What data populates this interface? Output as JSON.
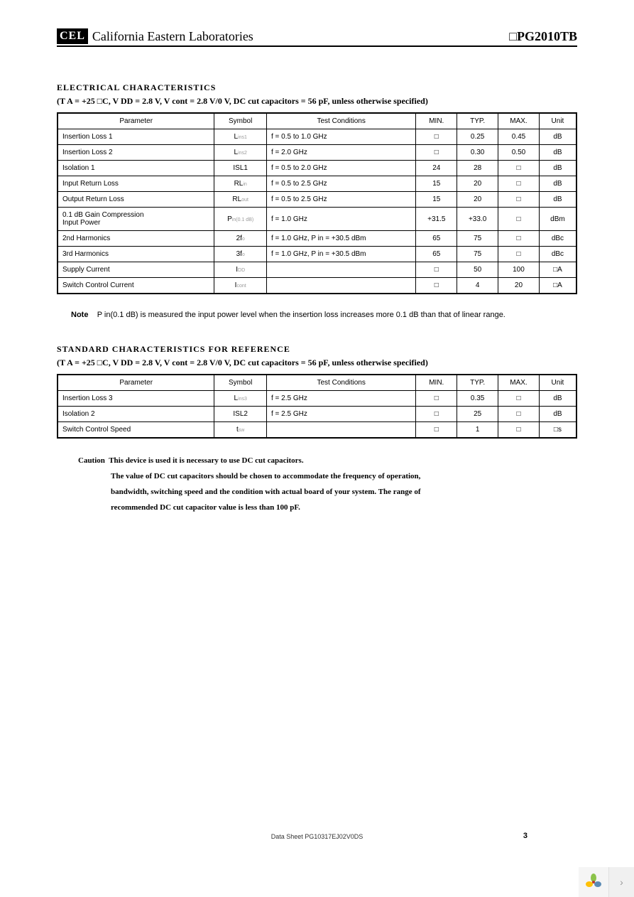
{
  "header": {
    "logo_text": "CEL",
    "company": "California Eastern Laboratories",
    "part_number": "□PG2010TB"
  },
  "section1": {
    "title": "ELECTRICAL  CHARACTERISTICS",
    "conditions": "(T A = +25  □C, V DD  = 2.8 V, V  cont   = 2.8 V/0 V, DC cut capacitors = 56 pF, unless otherwise specified)",
    "columns": [
      "Parameter",
      "Symbol",
      "Test Conditions",
      "MIN.",
      "TYP.",
      "MAX.",
      "Unit"
    ],
    "rows": [
      {
        "param": "Insertion Loss 1",
        "sym": "L",
        "sym_sub": "ins1",
        "cond": "f = 0.5 to 1.0 GHz",
        "min": "□",
        "typ": "0.25",
        "max": "0.45",
        "unit": "dB"
      },
      {
        "param": "Insertion Loss 2",
        "sym": "L",
        "sym_sub": "ins2",
        "cond": "f = 2.0 GHz",
        "min": "□",
        "typ": "0.30",
        "max": "0.50",
        "unit": "dB"
      },
      {
        "param": "Isolation 1",
        "sym": "ISL1",
        "sym_sub": "",
        "cond": "f = 0.5 to 2.0 GHz",
        "min": "24",
        "typ": "28",
        "max": "□",
        "unit": "dB"
      },
      {
        "param": "Input Return Loss",
        "sym": "RL",
        "sym_sub": "in",
        "cond": "f = 0.5 to 2.5 GHz",
        "min": "15",
        "typ": "20",
        "max": "□",
        "unit": "dB"
      },
      {
        "param": "Output Return Loss",
        "sym": "RL",
        "sym_sub": "out",
        "cond": "f = 0.5 to 2.5 GHz",
        "min": "15",
        "typ": "20",
        "max": "□",
        "unit": "dB"
      },
      {
        "param": "0.1 dB Gain Compression\nInput Power",
        "sym": "P",
        "sym_sub": "in(0.1 dB)",
        "cond": "f = 1.0 GHz",
        "min": "+31.5",
        "typ": "+33.0",
        "max": "□",
        "unit": "dBm"
      },
      {
        "param": "2nd Harmonics",
        "sym": "2f",
        "sym_sub": "o",
        "cond": "f = 1.0 GHz, P in  = +30.5 dBm",
        "min": "65",
        "typ": "75",
        "max": "□",
        "unit": "dBc"
      },
      {
        "param": "3rd Harmonics",
        "sym": "3f",
        "sym_sub": "o",
        "cond": "f = 1.0 GHz, P in  = +30.5 dBm",
        "min": "65",
        "typ": "75",
        "max": "□",
        "unit": "dBc"
      },
      {
        "param": "Supply Current",
        "sym": "I",
        "sym_sub": "DD",
        "cond": "",
        "min": "□",
        "typ": "50",
        "max": "100",
        "unit": "□A"
      },
      {
        "param": "Switch Control Current",
        "sym": "I",
        "sym_sub": "cont",
        "cond": "",
        "min": "□",
        "typ": "4",
        "max": "20",
        "unit": "□A"
      }
    ]
  },
  "note": {
    "label": "Note",
    "text": "P in(0.1 dB)  is measured the input power level when the insertion loss increases more 0.1 dB than that of linear range."
  },
  "section2": {
    "title": "STANDARD  CHARACTERISTICS  FOR  REFERENCE",
    "conditions": "(T A = +25  □C, V DD  = 2.8 V, V  cont   = 2.8 V/0 V, DC cut capacitors = 56 pF, unless otherwise specified)",
    "columns": [
      "Parameter",
      "Symbol",
      "Test Conditions",
      "MIN.",
      "TYP.",
      "MAX.",
      "Unit"
    ],
    "rows": [
      {
        "param": "Insertion Loss 3",
        "sym": "L",
        "sym_sub": "ins3",
        "cond": "f = 2.5 GHz",
        "min": "□",
        "typ": "0.35",
        "max": "□",
        "unit": "dB"
      },
      {
        "param": "Isolation 2",
        "sym": "ISL2",
        "sym_sub": "",
        "cond": "f = 2.5 GHz",
        "min": "□",
        "typ": "25",
        "max": "□",
        "unit": "dB"
      },
      {
        "param": "Switch Control Speed",
        "sym": "t",
        "sym_sub": "sw",
        "cond": "",
        "min": "□",
        "typ": "1",
        "max": "□",
        "unit": "□s"
      }
    ]
  },
  "caution": {
    "label": "Caution",
    "l1": "This device is used it is necessary to use DC cut capacitors.",
    "l2": "The value of DC cut capacitors should be chosen to accommodate the frequency of operation,",
    "l3": "bandwidth, switching speed and the condition with actual board of your system.  The range of",
    "l4": "recommended DC cut capacitor value is less than 100 pF."
  },
  "footer": {
    "doc_id": "Data Sheet  PG10317EJ02V0DS",
    "page_num": "3"
  },
  "widget": {
    "arrow": "›"
  },
  "colors": {
    "border": "#000000",
    "bg": "#ffffff",
    "widget_bg": "#f5f5f5"
  }
}
